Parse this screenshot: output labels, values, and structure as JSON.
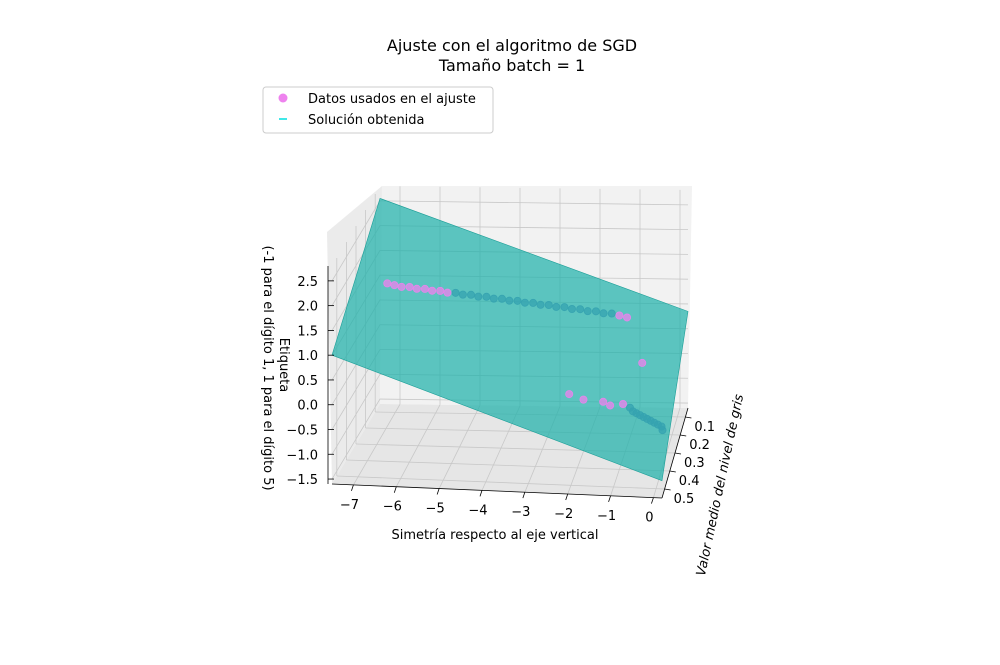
{
  "chart_data": {
    "type": "scatter3d",
    "title": "Ajuste con el algoritmo de SGD",
    "subtitle": "Tamaño batch = 1",
    "xlabel": "Simetría respecto al eje vertical",
    "ylabel": "Valor medio del nivel de gris",
    "zlabel_line1": "Etiqueta",
    "zlabel_line2": "(-1 para el dígito 1, 1 para el dígito 5)",
    "x_ticks": [
      "−7",
      "−6",
      "−5",
      "−4",
      "−3",
      "−2",
      "−1",
      "0"
    ],
    "x_tick_values": [
      -7,
      -6,
      -5,
      -4,
      -3,
      -2,
      -1,
      0
    ],
    "y_ticks": [
      "0.1",
      "0.2",
      "0.3",
      "0.4",
      "0.5"
    ],
    "y_tick_values": [
      0.1,
      0.2,
      0.3,
      0.4,
      0.5
    ],
    "z_ticks": [
      "−1.5",
      "−1.0",
      "−0.5",
      "0.0",
      "0.5",
      "1.0",
      "1.5",
      "2.0",
      "2.5"
    ],
    "z_tick_values": [
      -1.5,
      -1.0,
      -0.5,
      0.0,
      0.5,
      1.0,
      1.5,
      2.0,
      2.5
    ],
    "xlim": [
      -7.5,
      0.2
    ],
    "ylim": [
      0.05,
      0.55
    ],
    "zlim": [
      -1.6,
      2.8
    ],
    "grid": true,
    "legend_position": "top-left",
    "legend": [
      {
        "label": "Datos usados en el ajuste",
        "marker": "circle",
        "color": "#ee82ee"
      },
      {
        "label": "Solución obtenida",
        "marker": "line",
        "color": "#00e0e0"
      }
    ],
    "colors": {
      "data": "#ee82ee",
      "plane": "#20b2aa",
      "plane_edge": "#1a9e97",
      "occluded_points": "#6a7bbd"
    },
    "series": [
      {
        "name": "Datos usados en el ajuste",
        "note_cluster": "digit 5",
        "points": [
          [
            -7.2,
            0.1,
            1.0
          ],
          [
            -7.0,
            0.11,
            1.0
          ],
          [
            -6.8,
            0.12,
            1.0
          ],
          [
            -6.6,
            0.12,
            1.0
          ],
          [
            -6.4,
            0.13,
            1.0
          ],
          [
            -6.2,
            0.13,
            1.0
          ],
          [
            -6.0,
            0.14,
            1.0
          ],
          [
            -5.8,
            0.14,
            1.0
          ],
          [
            -5.6,
            0.15,
            1.0
          ],
          [
            -5.4,
            0.15,
            1.0
          ],
          [
            -5.2,
            0.16,
            1.0
          ],
          [
            -5.0,
            0.16,
            1.0
          ],
          [
            -4.8,
            0.17,
            1.0
          ],
          [
            -4.6,
            0.17,
            1.0
          ],
          [
            -4.4,
            0.18,
            1.0
          ],
          [
            -4.2,
            0.18,
            1.0
          ],
          [
            -4.0,
            0.19,
            1.0
          ],
          [
            -3.8,
            0.19,
            1.0
          ],
          [
            -3.6,
            0.2,
            1.0
          ],
          [
            -3.4,
            0.2,
            1.0
          ],
          [
            -3.2,
            0.21,
            1.0
          ],
          [
            -3.0,
            0.21,
            1.0
          ],
          [
            -2.8,
            0.22,
            1.0
          ],
          [
            -2.6,
            0.22,
            1.0
          ],
          [
            -2.4,
            0.23,
            1.0
          ],
          [
            -2.2,
            0.23,
            1.0
          ],
          [
            -2.0,
            0.24,
            1.0
          ],
          [
            -1.8,
            0.24,
            1.0
          ],
          [
            -1.6,
            0.25,
            1.0
          ],
          [
            -1.4,
            0.25,
            1.0
          ],
          [
            -1.2,
            0.26,
            1.0
          ],
          [
            -1.0,
            0.27,
            1.0
          ],
          [
            -0.3,
            0.52,
            1.0
          ]
        ]
      },
      {
        "name": "Datos usados en el ajuste",
        "note_cluster": "digit 1",
        "points": [
          [
            -1.2,
            0.2,
            -1.0
          ],
          [
            -1.0,
            0.22,
            -1.0
          ],
          [
            -0.9,
            0.24,
            -1.0
          ],
          [
            -0.8,
            0.25,
            -1.0
          ],
          [
            -0.7,
            0.26,
            -1.0
          ],
          [
            -0.6,
            0.27,
            -1.0
          ],
          [
            -0.5,
            0.28,
            -1.0
          ],
          [
            -0.4,
            0.29,
            -1.0
          ],
          [
            -0.3,
            0.3,
            -1.0
          ],
          [
            -0.2,
            0.31,
            -1.0
          ],
          [
            -0.1,
            0.32,
            -1.0
          ],
          [
            -0.05,
            0.34,
            -1.0
          ],
          [
            -2.6,
            0.15,
            -1.0
          ],
          [
            -2.2,
            0.18,
            -1.0
          ],
          [
            -1.7,
            0.19,
            -1.0
          ],
          [
            -1.5,
            0.21,
            -1.0
          ]
        ]
      }
    ],
    "plane": {
      "name": "Solución obtenida",
      "corners": [
        [
          -7.5,
          0.05,
          2.55
        ],
        [
          0.2,
          0.05,
          0.35
        ],
        [
          0.2,
          0.55,
          -1.25
        ],
        [
          -7.5,
          0.55,
          1.0
        ]
      ]
    }
  }
}
